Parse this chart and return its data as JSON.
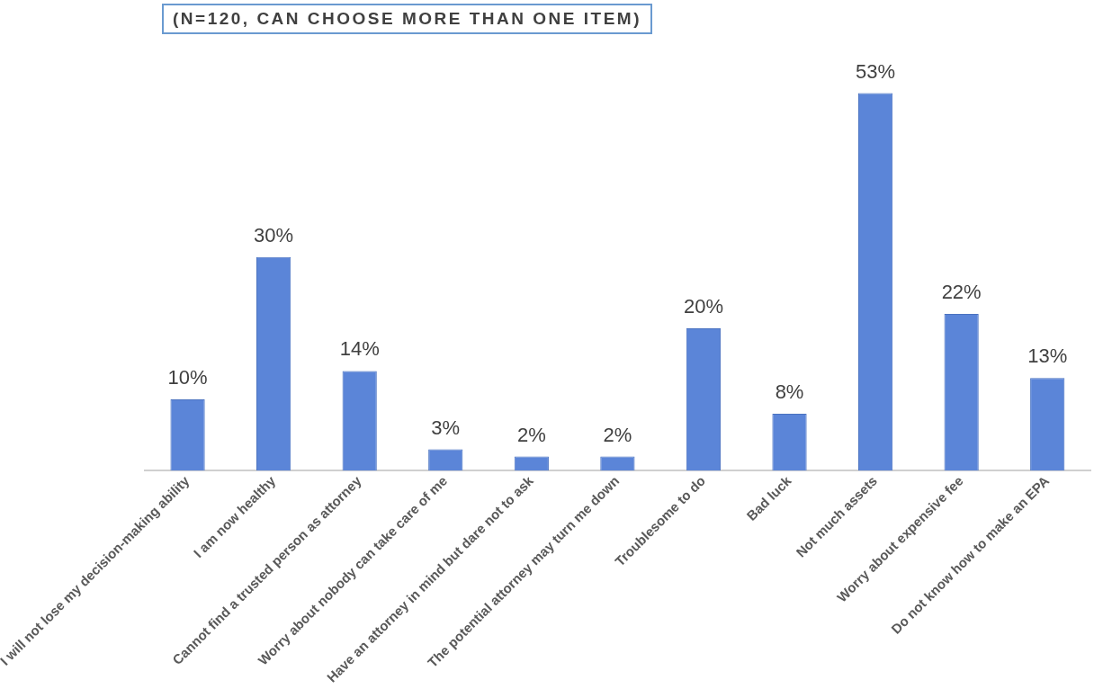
{
  "chart_data": {
    "type": "bar",
    "title": "(N=120, CAN CHOOSE MORE THAN ONE ITEM)",
    "categories": [
      "I will not lose my decision-making ability",
      "I am now healthy",
      "Cannot find a trusted person as attorney",
      "Worry about nobody can take care of me",
      "Have an attorney in mind but dare not to ask",
      "The potential attorney may turn me down",
      "Troublesome to do",
      "Bad luck",
      "Not much assets",
      "Worry about expensive fee",
      "Do not know how to make an EPA"
    ],
    "values": [
      10,
      30,
      14,
      3,
      2,
      2,
      20,
      8,
      53,
      22,
      13
    ],
    "value_labels": [
      "10%",
      "30%",
      "14%",
      "3%",
      "2%",
      "2%",
      "20%",
      "8%",
      "53%",
      "22%",
      "13%"
    ],
    "color": "#5b85d8",
    "grid": false,
    "legend": false
  }
}
